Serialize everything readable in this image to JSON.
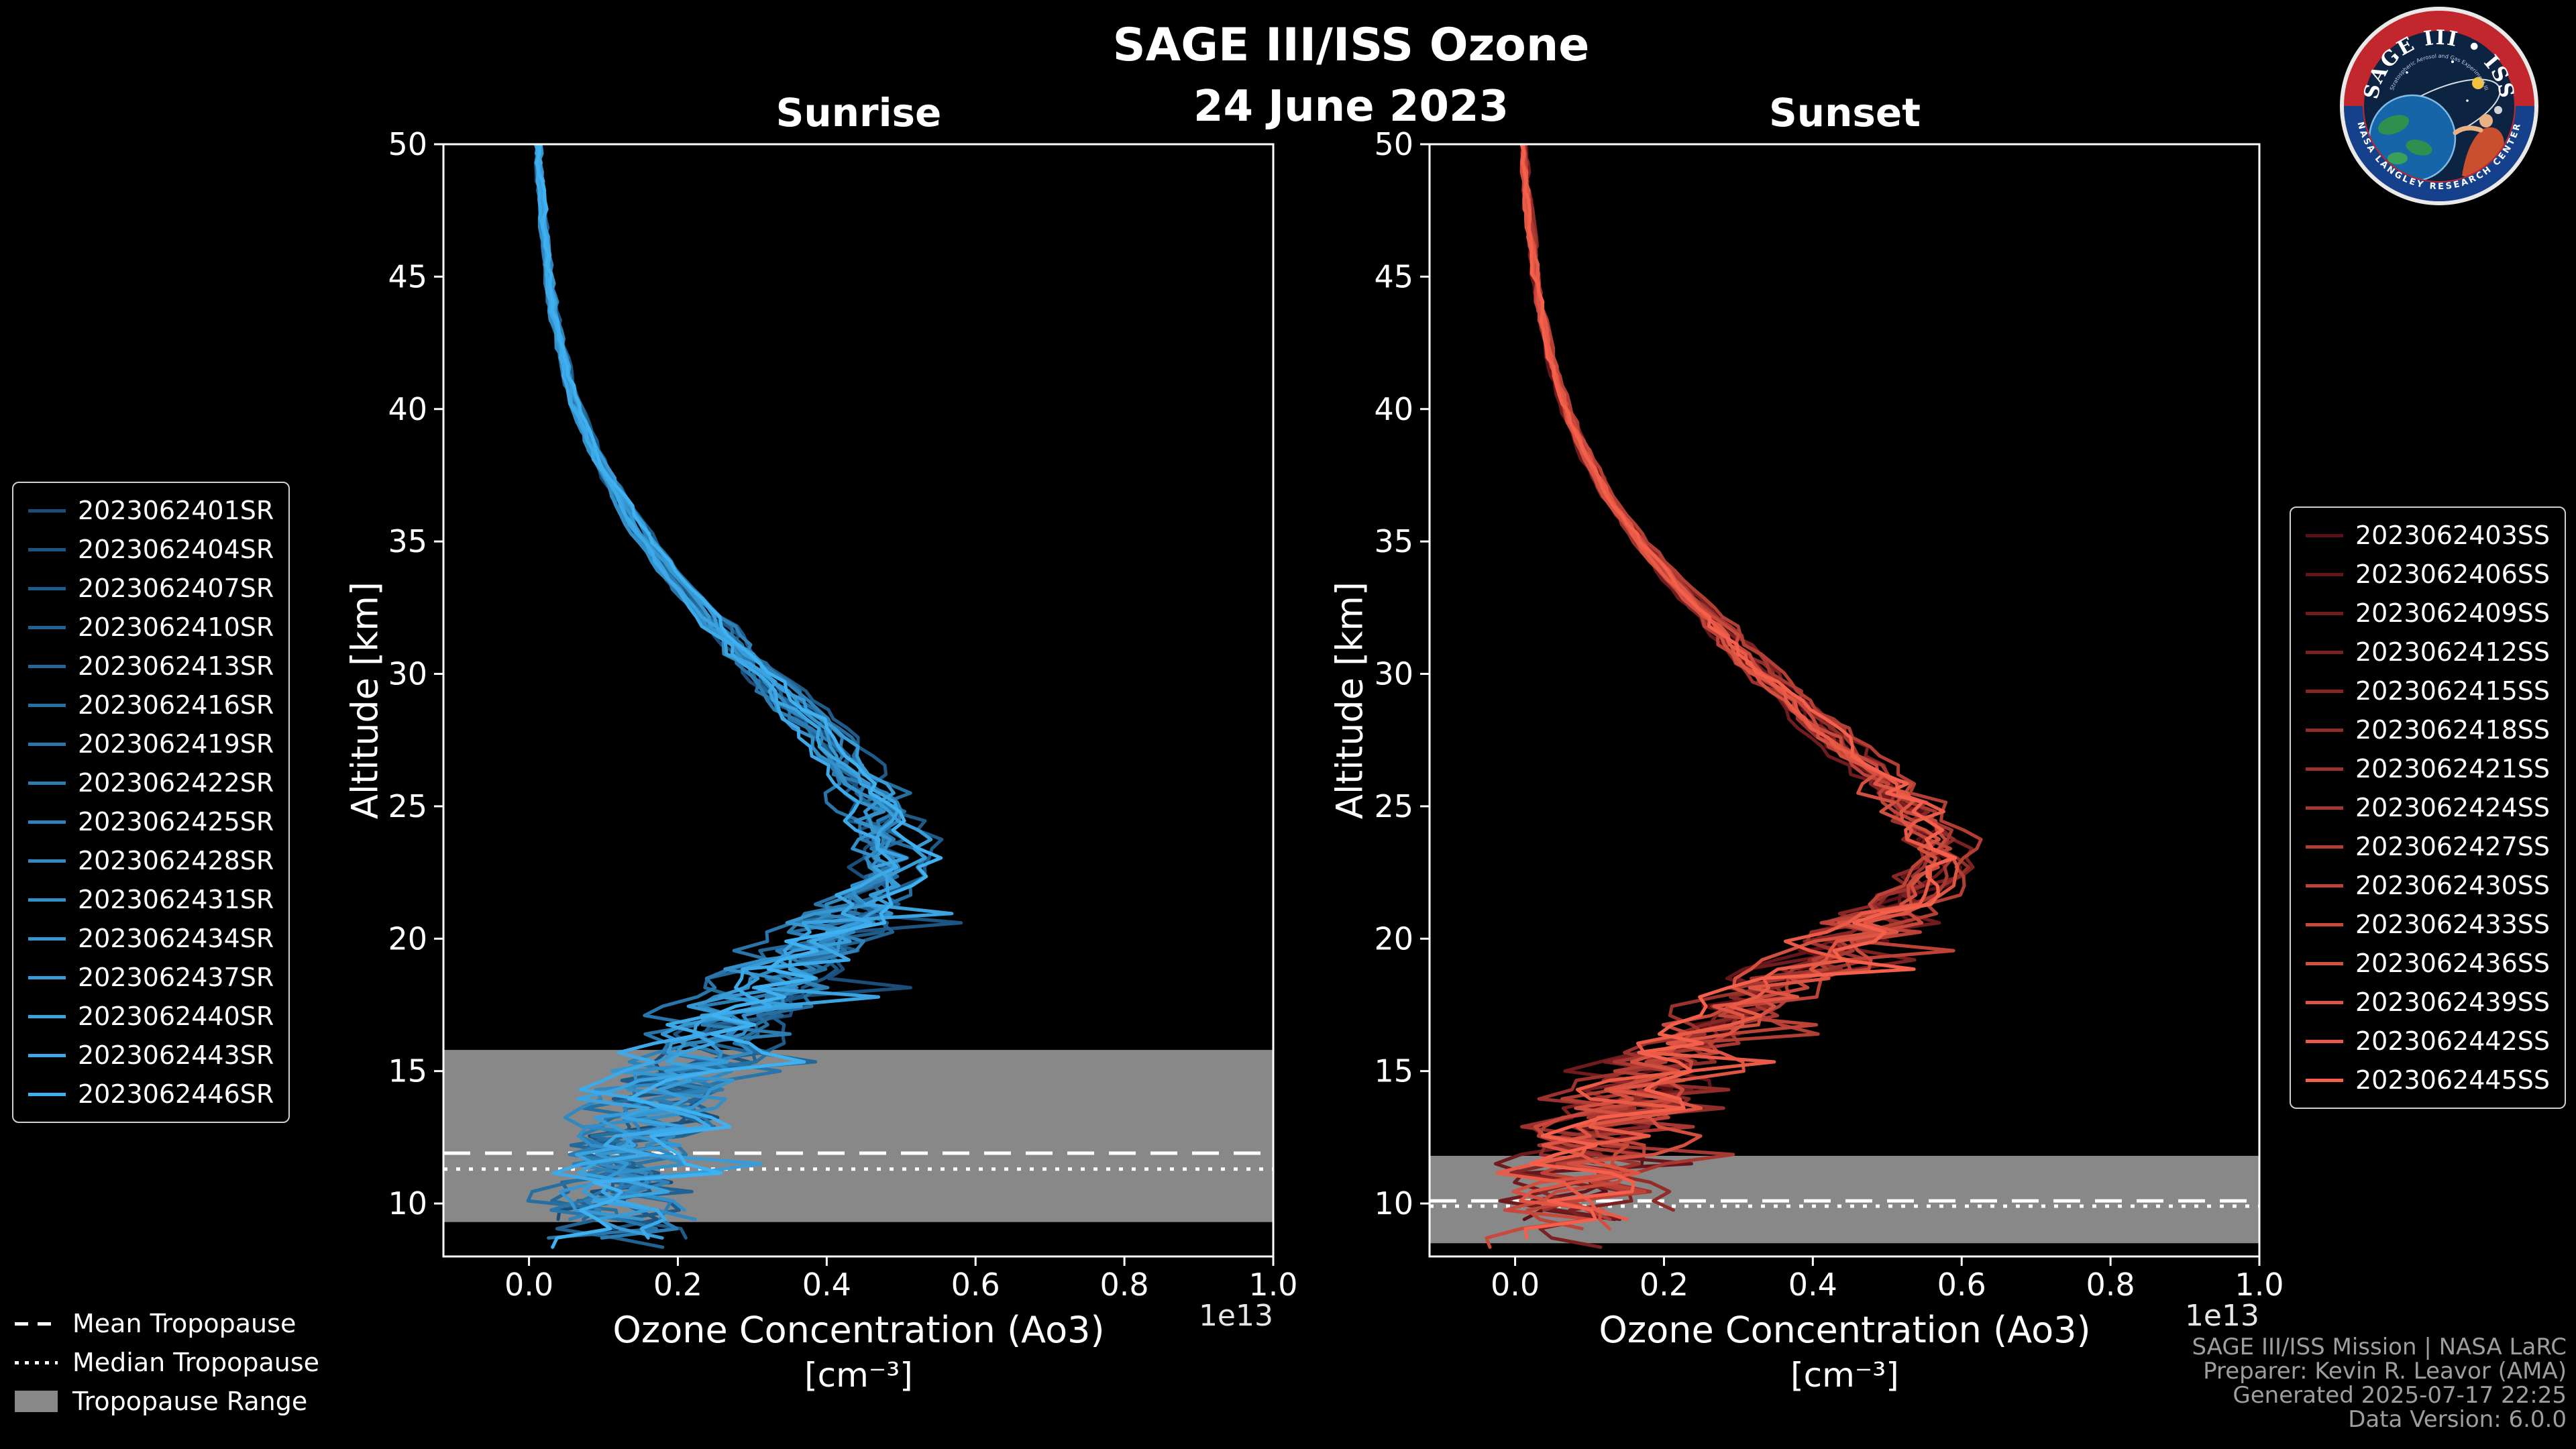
{
  "figure": {
    "title": "SAGE III/ISS Ozone",
    "date": "24 June 2023",
    "background": "#000000",
    "foreground": "#ffffff"
  },
  "logo": {
    "title": "SAGE III • ISS",
    "tagline": "Stratospheric Aerosol and Gas Experiment III",
    "ring_text": "NASA LANGLEY RESEARCH CENTER"
  },
  "credits": {
    "mission": "SAGE III/ISS Mission | NASA LaRC",
    "preparer": "Preparer: Kevin R. Leavor (AMA)",
    "generated": "Generated 2025-07-17 22:25",
    "version": "Data Version: 6.0.0"
  },
  "tropopause_legend": {
    "mean_label": "Mean Tropopause",
    "median_label": "Median Tropopause",
    "range_label": "Tropopause Range"
  },
  "chart_data": [
    {
      "type": "line",
      "panel": "sunrise",
      "title": "Sunrise",
      "ylabel": "Altitude [km]",
      "xlabel": "Ozone Concentration (Ao3)",
      "xlabel_units": "[cm⁻³]",
      "axis_offset_label": "1e13",
      "x_unit_scale": "1e13 cm^-3",
      "xlim": [
        -0.115,
        1.0
      ],
      "ylim": [
        8.0,
        50.0
      ],
      "xticks": [
        0.0,
        0.2,
        0.4,
        0.6,
        0.8,
        1.0
      ],
      "yticks": [
        10,
        15,
        20,
        25,
        30,
        35,
        40,
        45,
        50
      ],
      "grid": false,
      "legend_position": "outside-left",
      "line_color_start": "#1a4e79",
      "line_color_end": "#3fb0f0",
      "series_names": [
        "2023062401SR",
        "2023062404SR",
        "2023062407SR",
        "2023062410SR",
        "2023062413SR",
        "2023062416SR",
        "2023062419SR",
        "2023062422SR",
        "2023062425SR",
        "2023062428SR",
        "2023062431SR",
        "2023062434SR",
        "2023062437SR",
        "2023062440SR",
        "2023062443SR",
        "2023062446SR"
      ],
      "profile_alt_km": [
        8.5,
        9,
        10,
        11,
        12,
        13,
        14,
        15,
        16,
        17,
        18,
        19,
        20,
        21,
        22,
        23,
        24,
        25,
        26,
        27,
        28,
        29,
        30,
        31,
        32,
        33,
        34,
        35,
        36,
        37,
        38,
        39,
        40,
        41,
        42,
        43,
        44,
        45,
        46,
        47,
        48,
        49,
        50
      ],
      "profile_mean_1e13": [
        0.14,
        0.13,
        0.115,
        0.1,
        0.12,
        0.15,
        0.18,
        0.21,
        0.24,
        0.27,
        0.31,
        0.36,
        0.4,
        0.44,
        0.47,
        0.5,
        0.49,
        0.47,
        0.445,
        0.42,
        0.39,
        0.35,
        0.315,
        0.28,
        0.25,
        0.215,
        0.185,
        0.16,
        0.135,
        0.115,
        0.095,
        0.08,
        0.065,
        0.055,
        0.046,
        0.038,
        0.032,
        0.027,
        0.023,
        0.02,
        0.017,
        0.014,
        0.012
      ],
      "peak": {
        "altitude_km": 23,
        "concentration_1e13": 0.5
      },
      "tropopause": {
        "mean_km": 11.9,
        "median_km": 11.3,
        "range_min_km": 9.3,
        "range_max_km": 15.8
      },
      "seed": 1234
    },
    {
      "type": "line",
      "panel": "sunset",
      "title": "Sunset",
      "ylabel": "Altitude [km]",
      "xlabel": "Ozone Concentration (Ao3)",
      "xlabel_units": "[cm⁻³]",
      "axis_offset_label": "1e13",
      "x_unit_scale": "1e13 cm^-3",
      "xlim": [
        -0.115,
        1.0
      ],
      "ylim": [
        8.0,
        50.0
      ],
      "xticks": [
        0.0,
        0.2,
        0.4,
        0.6,
        0.8,
        1.0
      ],
      "yticks": [
        10,
        15,
        20,
        25,
        30,
        35,
        40,
        45,
        50
      ],
      "grid": false,
      "legend_position": "outside-right",
      "line_color_start": "#5a1016",
      "line_color_end": "#f4604b",
      "series_names": [
        "2023062403SS",
        "2023062406SS",
        "2023062409SS",
        "2023062412SS",
        "2023062415SS",
        "2023062418SS",
        "2023062421SS",
        "2023062424SS",
        "2023062427SS",
        "2023062430SS",
        "2023062433SS",
        "2023062436SS",
        "2023062439SS",
        "2023062442SS",
        "2023062445SS"
      ],
      "profile_alt_km": [
        8.5,
        9,
        10,
        11,
        12,
        13,
        14,
        15,
        16,
        17,
        18,
        19,
        20,
        21,
        22,
        23,
        24,
        25,
        26,
        27,
        28,
        29,
        30,
        31,
        32,
        33,
        34,
        35,
        36,
        37,
        38,
        39,
        40,
        41,
        42,
        43,
        44,
        45,
        46,
        47,
        48,
        49,
        50
      ],
      "profile_mean_1e13": [
        0.07,
        0.075,
        0.08,
        0.09,
        0.11,
        0.13,
        0.16,
        0.2,
        0.24,
        0.28,
        0.33,
        0.39,
        0.45,
        0.5,
        0.545,
        0.575,
        0.565,
        0.535,
        0.495,
        0.455,
        0.415,
        0.375,
        0.335,
        0.3,
        0.265,
        0.23,
        0.198,
        0.168,
        0.142,
        0.12,
        0.1,
        0.084,
        0.07,
        0.058,
        0.048,
        0.04,
        0.033,
        0.028,
        0.023,
        0.02,
        0.017,
        0.014,
        0.012
      ],
      "peak": {
        "altitude_km": 23,
        "concentration_1e13": 0.575
      },
      "tropopause": {
        "mean_km": 10.1,
        "median_km": 9.9,
        "range_min_km": 8.5,
        "range_max_km": 11.8
      },
      "seed": 5678
    }
  ]
}
